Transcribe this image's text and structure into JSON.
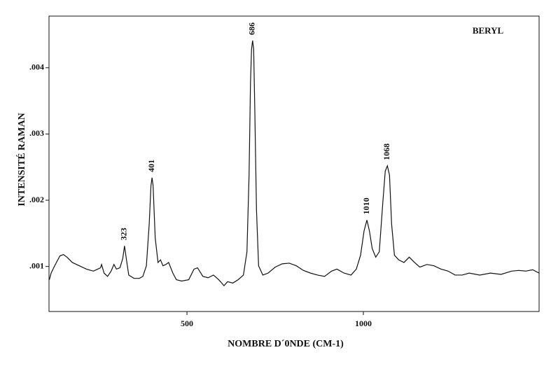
{
  "chart_data": {
    "type": "line",
    "annotation": "BERYL",
    "ylabel": "INTENSITÉ RAMAN",
    "xlabel": "NOMBRE D´0NDE (CM-1)",
    "color": "#111111",
    "xlim": [
      109,
      1498
    ],
    "ylim": [
      0.00032,
      0.00478
    ],
    "xticks": [
      500,
      1000
    ],
    "yticks": [
      {
        "value": 0.001,
        "label": ".001"
      },
      {
        "value": 0.002,
        "label": ".002"
      },
      {
        "value": 0.003,
        "label": ".003"
      },
      {
        "value": 0.004,
        "label": ".004"
      }
    ],
    "peaks": [
      323,
      401,
      686,
      1010,
      1068
    ],
    "x": [
      110,
      115,
      125,
      140,
      150,
      160,
      175,
      195,
      215,
      235,
      255,
      258,
      265,
      275,
      285,
      293,
      300,
      310,
      318,
      323,
      328,
      335,
      350,
      365,
      375,
      385,
      393,
      398,
      401,
      404,
      410,
      418,
      425,
      432,
      440,
      448,
      460,
      470,
      485,
      505,
      520,
      530,
      545,
      560,
      575,
      590,
      605,
      615,
      630,
      645,
      660,
      670,
      676,
      680,
      683,
      686,
      689,
      692,
      697,
      703,
      715,
      730,
      750,
      770,
      790,
      810,
      830,
      850,
      870,
      890,
      910,
      925,
      945,
      965,
      980,
      992,
      1002,
      1010,
      1017,
      1025,
      1035,
      1045,
      1055,
      1062,
      1068,
      1074,
      1080,
      1088,
      1100,
      1115,
      1130,
      1145,
      1160,
      1180,
      1200,
      1220,
      1240,
      1260,
      1280,
      1300,
      1330,
      1360,
      1390,
      1420,
      1440,
      1460,
      1480,
      1498
    ],
    "values": [
      0.0008,
      0.0009,
      0.00101,
      0.00116,
      0.00118,
      0.00114,
      0.00106,
      0.00101,
      0.00096,
      0.00093,
      0.00098,
      0.00103,
      0.0009,
      0.00085,
      0.00093,
      0.00103,
      0.00096,
      0.00098,
      0.00112,
      0.00131,
      0.00112,
      0.00087,
      0.00082,
      0.00082,
      0.00085,
      0.00101,
      0.00164,
      0.00222,
      0.00234,
      0.00222,
      0.00143,
      0.00106,
      0.0011,
      0.00101,
      0.00103,
      0.00106,
      0.0009,
      0.0008,
      0.00078,
      0.0008,
      0.00096,
      0.00098,
      0.00085,
      0.00083,
      0.00087,
      0.0008,
      0.00071,
      0.00077,
      0.00075,
      0.0008,
      0.00087,
      0.00122,
      0.00238,
      0.00376,
      0.00428,
      0.00441,
      0.00428,
      0.00344,
      0.00186,
      0.00101,
      0.00087,
      0.0009,
      0.00099,
      0.00104,
      0.00105,
      0.00101,
      0.00094,
      0.0009,
      0.00087,
      0.00085,
      0.00093,
      0.00096,
      0.0009,
      0.00087,
      0.00096,
      0.00117,
      0.00154,
      0.0017,
      0.00154,
      0.00127,
      0.00114,
      0.00122,
      0.00196,
      0.00244,
      0.00252,
      0.00238,
      0.00164,
      0.00117,
      0.0011,
      0.00106,
      0.00114,
      0.00106,
      0.00099,
      0.00103,
      0.00101,
      0.00096,
      0.00093,
      0.00087,
      0.00087,
      0.0009,
      0.00087,
      0.0009,
      0.00088,
      0.00093,
      0.00094,
      0.00093,
      0.00095,
      0.0009
    ]
  }
}
